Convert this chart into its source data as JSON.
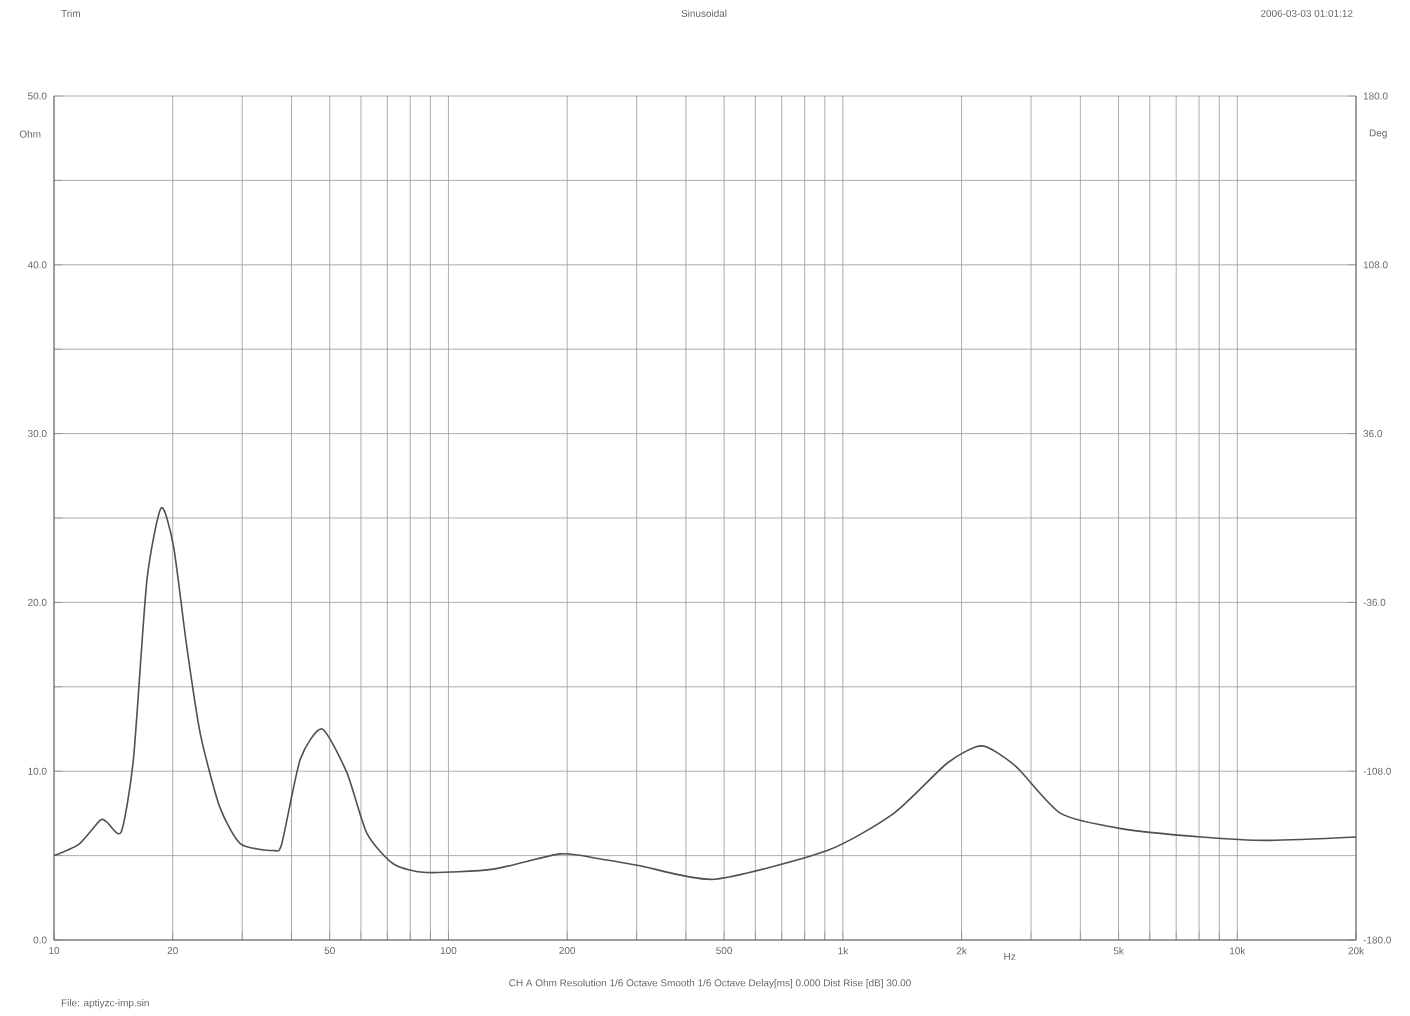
{
  "chart_data": {
    "type": "line",
    "title": "Sinusoidal",
    "annotations": [
      "Trim",
      "2006-03-03 01:01:12",
      "CH A  Ohm  Resolution 1/6 Octave  Smooth 1/6 Octave  Delay[ms] 0.000  Dist Rise [dB] 30.00",
      "File: aptiyzc-imp.sin"
    ],
    "xlabel": "Hz",
    "ylabel": "Ohm",
    "y2label": "Deg",
    "log": "x",
    "grid": true,
    "xlim": [
      10,
      20000
    ],
    "ylim": [
      0,
      50
    ],
    "y2lim": [
      -180,
      180
    ],
    "xticks": [
      {
        "value": 10,
        "label": "10"
      },
      {
        "value": 20,
        "label": "20"
      },
      {
        "value": 30,
        "label": null
      },
      {
        "value": 40,
        "label": null
      },
      {
        "value": 50,
        "label": "50"
      },
      {
        "value": 60,
        "label": null
      },
      {
        "value": 70,
        "label": null
      },
      {
        "value": 80,
        "label": null
      },
      {
        "value": 90,
        "label": null
      },
      {
        "value": 100,
        "label": "100"
      },
      {
        "value": 200,
        "label": "200"
      },
      {
        "value": 300,
        "label": null
      },
      {
        "value": 400,
        "label": null
      },
      {
        "value": 500,
        "label": "500"
      },
      {
        "value": 600,
        "label": null
      },
      {
        "value": 700,
        "label": null
      },
      {
        "value": 800,
        "label": null
      },
      {
        "value": 900,
        "label": null
      },
      {
        "value": 1000,
        "label": "1k"
      },
      {
        "value": 2000,
        "label": "2k"
      },
      {
        "value": 3000,
        "label": null
      },
      {
        "value": 4000,
        "label": null
      },
      {
        "value": 5000,
        "label": "5k"
      },
      {
        "value": 6000,
        "label": null
      },
      {
        "value": 7000,
        "label": null
      },
      {
        "value": 8000,
        "label": null
      },
      {
        "value": 9000,
        "label": null
      },
      {
        "value": 10000,
        "label": "10k"
      },
      {
        "value": 20000,
        "label": "20k"
      }
    ],
    "yticks": [
      {
        "value": 0,
        "label": "0.0"
      },
      {
        "value": 5,
        "label": null
      },
      {
        "value": 10,
        "label": "10.0"
      },
      {
        "value": 15,
        "label": null
      },
      {
        "value": 20,
        "label": "20.0"
      },
      {
        "value": 25,
        "label": null
      },
      {
        "value": 30,
        "label": "30.0"
      },
      {
        "value": 35,
        "label": null
      },
      {
        "value": 40,
        "label": "40.0"
      },
      {
        "value": 45,
        "label": null
      },
      {
        "value": 50,
        "label": "50.0"
      }
    ],
    "y2ticks": [
      {
        "value": -180,
        "label": "-180.0"
      },
      {
        "value": -108,
        "label": "-108.0"
      },
      {
        "value": -36,
        "label": "-36.0"
      },
      {
        "value": 36,
        "label": "36.0"
      },
      {
        "value": 108,
        "label": "108.0"
      },
      {
        "value": 180,
        "label": "180.0"
      }
    ],
    "marker": "none",
    "series": [
      {
        "color": "#505050",
        "x": [
          10,
          11.6,
          13.1,
          13.6,
          14.8,
          15.9,
          17.2,
          18.7,
          20.1,
          21.7,
          23.5,
          26.3,
          29.7,
          36,
          37.8,
          42.1,
          47.8,
          55.3,
          62.2,
          72.6,
          88.1,
          130,
          192,
          243,
          306,
          473,
          913,
          1346,
          1844,
          2253,
          2741,
          3566,
          5075,
          8110,
          11950,
          20000
        ],
        "values": [
          5.0,
          5.7,
          7.1,
          7.0,
          6.4,
          10.7,
          21.3,
          25.6,
          23.3,
          17.4,
          12.2,
          7.9,
          5.7,
          5.3,
          5.7,
          10.7,
          12.5,
          9.9,
          6.3,
          4.5,
          4.0,
          4.2,
          5.1,
          4.8,
          4.4,
          3.6,
          5.3,
          7.5,
          10.5,
          11.5,
          10.3,
          7.5,
          6.6,
          6.1,
          5.9,
          6.1
        ]
      }
    ]
  }
}
